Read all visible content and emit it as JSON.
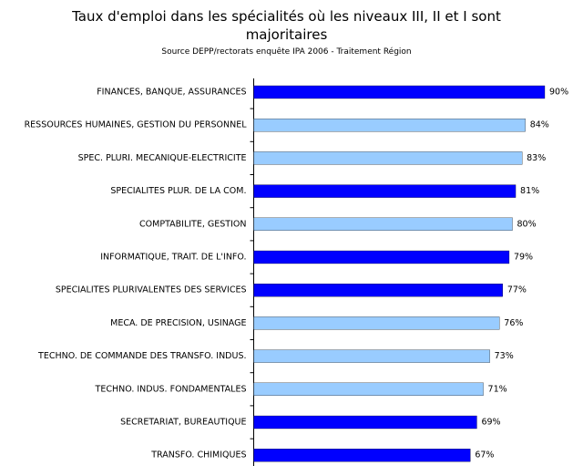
{
  "chart_data": {
    "type": "bar",
    "orientation": "horizontal",
    "title": "Taux d'emploi dans les spécialités où les niveaux III, II et I sont majoritaires",
    "subtitle": "Source DEPP/rectorats enquête IPA 2006 - Traitement Région",
    "categories": [
      "FINANCES, BANQUE, ASSURANCES",
      "RESSOURCES HUMAINES, GESTION DU PERSONNEL",
      "SPEC. PLURI. MECANIQUE-ELECTRICITE",
      "SPECIALITES PLUR. DE LA COM.",
      "COMPTABILITE, GESTION",
      "INFORMATIQUE, TRAIT. DE L'INFO.",
      "SPECIALITES PLURIVALENTES DES SERVICES",
      "MECA. DE PRECISION, USINAGE",
      "TECHNO. DE COMMANDE DES TRANSFO. INDUS.",
      "TECHNO. INDUS. FONDAMENTALES",
      "SECRETARIAT, BUREAUTIQUE",
      "TRANSFO. CHIMIQUES"
    ],
    "values": [
      90,
      84,
      83,
      81,
      80,
      79,
      77,
      76,
      73,
      71,
      69,
      67
    ],
    "value_labels": [
      "90%",
      "84%",
      "83%",
      "81%",
      "80%",
      "79%",
      "77%",
      "76%",
      "73%",
      "71%",
      "69%",
      "67%"
    ],
    "colors": [
      "#0000ff",
      "#99ccff",
      "#99ccff",
      "#0000ff",
      "#99ccff",
      "#0000ff",
      "#0000ff",
      "#99ccff",
      "#99ccff",
      "#99ccff",
      "#0000ff",
      "#0000ff"
    ],
    "xlim": [
      0,
      90
    ]
  }
}
